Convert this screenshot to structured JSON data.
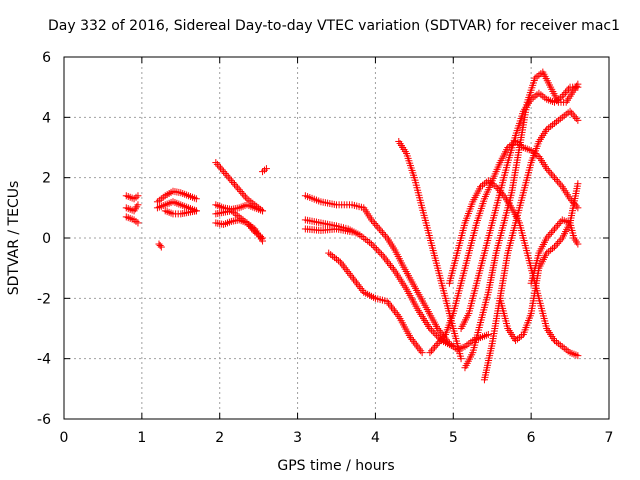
{
  "chart_data": {
    "type": "scatter",
    "title": "Day 332 of 2016, Sidereal Day-to-day VTEC variation (SDTVAR) for receiver mac1",
    "xlabel": "GPS time / hours",
    "ylabel": "SDTVAR / TECUs",
    "xlim": [
      0,
      7
    ],
    "ylim": [
      -6,
      6
    ],
    "xticks": [
      "0",
      "1",
      "2",
      "3",
      "4",
      "5",
      "6",
      "7"
    ],
    "yticks": [
      "-6",
      "-4",
      "-2",
      "0",
      "2",
      "4",
      "6"
    ],
    "grid": true,
    "marker": "+",
    "color": "#ff0000",
    "segments": [
      {
        "x": [
          0.8,
          0.9,
          0.95
        ],
        "y": [
          1.4,
          1.3,
          1.4
        ]
      },
      {
        "x": [
          0.8,
          0.9,
          0.95
        ],
        "y": [
          1.0,
          0.9,
          1.1
        ]
      },
      {
        "x": [
          0.8,
          0.9,
          0.95
        ],
        "y": [
          0.7,
          0.6,
          0.5
        ]
      },
      {
        "x": [
          1.22,
          1.25
        ],
        "y": [
          -0.2,
          -0.3
        ]
      },
      {
        "x": [
          1.2,
          1.3,
          1.4,
          1.5,
          1.6,
          1.7
        ],
        "y": [
          1.2,
          1.4,
          1.55,
          1.5,
          1.4,
          1.3
        ]
      },
      {
        "x": [
          1.2,
          1.3,
          1.4,
          1.5,
          1.6,
          1.7
        ],
        "y": [
          1.0,
          1.1,
          1.2,
          1.1,
          1.0,
          0.9
        ]
      },
      {
        "x": [
          1.3,
          1.4,
          1.5,
          1.6,
          1.7
        ],
        "y": [
          0.9,
          0.8,
          0.8,
          0.85,
          0.9
        ]
      },
      {
        "x": [
          1.95,
          2.05,
          2.15,
          2.25,
          2.35,
          2.45,
          2.55
        ],
        "y": [
          2.5,
          2.2,
          1.9,
          1.6,
          1.3,
          1.1,
          0.9
        ]
      },
      {
        "x": [
          1.95,
          2.05,
          2.15,
          2.25,
          2.35,
          2.45,
          2.55
        ],
        "y": [
          1.1,
          1.0,
          0.95,
          1.0,
          1.1,
          1.0,
          0.9
        ]
      },
      {
        "x": [
          1.95,
          2.05,
          2.15,
          2.25,
          2.35,
          2.45,
          2.55
        ],
        "y": [
          0.8,
          0.85,
          0.9,
          0.7,
          0.5,
          0.2,
          0.0
        ]
      },
      {
        "x": [
          1.95,
          2.05,
          2.15,
          2.25,
          2.35,
          2.45,
          2.55
        ],
        "y": [
          0.5,
          0.45,
          0.55,
          0.6,
          0.5,
          0.3,
          -0.1
        ]
      },
      {
        "x": [
          2.55,
          2.6
        ],
        "y": [
          2.2,
          2.3
        ]
      },
      {
        "x": [
          3.1,
          3.3,
          3.5,
          3.7,
          3.85,
          3.95,
          4.05,
          4.15,
          4.25,
          4.35,
          4.5,
          4.65,
          4.8,
          4.95,
          5.05,
          5.15,
          5.25,
          5.35,
          5.45
        ],
        "y": [
          1.4,
          1.2,
          1.1,
          1.1,
          1.0,
          0.6,
          0.3,
          0.0,
          -0.4,
          -0.9,
          -1.6,
          -2.3,
          -3.0,
          -3.5,
          -3.7,
          -3.6,
          -3.4,
          -3.3,
          -3.2
        ]
      },
      {
        "x": [
          3.1,
          3.3,
          3.5,
          3.65,
          3.8,
          3.95,
          4.1,
          4.25,
          4.4,
          4.55,
          4.7,
          4.85,
          5.0
        ],
        "y": [
          0.6,
          0.5,
          0.4,
          0.3,
          0.1,
          -0.2,
          -0.6,
          -1.1,
          -1.7,
          -2.4,
          -3.0,
          -3.4,
          -3.6
        ]
      },
      {
        "x": [
          3.1,
          3.3,
          3.5,
          3.7
        ],
        "y": [
          0.3,
          0.25,
          0.3,
          0.2
        ]
      },
      {
        "x": [
          3.4,
          3.55,
          3.7,
          3.85,
          4.0,
          4.15,
          4.3,
          4.45,
          4.6
        ],
        "y": [
          -0.5,
          -0.8,
          -1.3,
          -1.8,
          -2.0,
          -2.1,
          -2.6,
          -3.3,
          -3.8
        ]
      },
      {
        "x": [
          4.3,
          4.4,
          4.5,
          4.6,
          4.7,
          4.8,
          4.9,
          5.0,
          5.1
        ],
        "y": [
          3.2,
          2.8,
          2.0,
          1.0,
          0.0,
          -1.0,
          -2.0,
          -3.0,
          -4.0
        ]
      },
      {
        "x": [
          4.7,
          4.8,
          4.9,
          5.0,
          5.1,
          5.2,
          5.3,
          5.4,
          5.5,
          5.6,
          5.7,
          5.8,
          5.9,
          6.0,
          6.1,
          6.2,
          6.3,
          6.4,
          6.5,
          6.6
        ],
        "y": [
          -3.8,
          -3.5,
          -3.2,
          -2.5,
          -1.5,
          -0.5,
          0.5,
          1.3,
          1.9,
          2.5,
          3.0,
          3.2,
          3.0,
          2.9,
          2.7,
          2.3,
          2.0,
          1.7,
          1.3,
          1.0
        ]
      },
      {
        "x": [
          4.95,
          5.05,
          5.15,
          5.25,
          5.35,
          5.45,
          5.55,
          5.65,
          5.75,
          5.85,
          5.9,
          6.0,
          6.1,
          6.2,
          6.3,
          6.4,
          6.5,
          6.6
        ],
        "y": [
          -1.5,
          -0.5,
          0.5,
          1.2,
          1.7,
          1.9,
          1.7,
          1.4,
          1.0,
          0.5,
          0.0,
          -1.0,
          -2.0,
          -3.0,
          -3.4,
          -3.6,
          -3.8,
          -3.9
        ]
      },
      {
        "x": [
          5.1,
          5.2,
          5.3,
          5.4,
          5.5,
          5.6,
          5.7,
          5.8,
          5.9,
          6.0,
          6.1,
          6.2,
          6.3,
          6.4,
          6.5,
          6.6
        ],
        "y": [
          -3.0,
          -2.5,
          -1.5,
          -0.5,
          0.5,
          1.5,
          2.5,
          3.4,
          4.2,
          4.6,
          4.8,
          4.6,
          4.5,
          4.7,
          5.0,
          5.0
        ]
      },
      {
        "x": [
          5.15,
          5.25,
          5.35,
          5.45,
          5.55,
          5.65,
          5.75,
          5.85,
          5.95,
          6.05,
          6.15,
          6.25,
          6.35,
          6.45,
          6.55,
          6.6
        ],
        "y": [
          -4.3,
          -3.8,
          -2.8,
          -1.8,
          -0.5,
          0.5,
          1.5,
          3.0,
          4.5,
          5.3,
          5.5,
          5.0,
          4.5,
          4.5,
          4.9,
          5.1
        ]
      },
      {
        "x": [
          5.4,
          5.5,
          5.6,
          5.7,
          5.8,
          5.9,
          6.0,
          6.1,
          6.2,
          6.3,
          6.4,
          6.5,
          6.6
        ],
        "y": [
          -4.7,
          -3.5,
          -2.0,
          -0.5,
          0.5,
          1.5,
          2.5,
          3.2,
          3.6,
          3.8,
          4.0,
          4.2,
          3.9
        ]
      },
      {
        "x": [
          5.6,
          5.7,
          5.8,
          5.9,
          6.0,
          6.1,
          6.2,
          6.3,
          6.4,
          6.5,
          6.6
        ],
        "y": [
          -2.0,
          -3.0,
          -3.4,
          -3.2,
          -2.5,
          -1.0,
          -0.5,
          -0.3,
          0.0,
          0.5,
          1.8
        ]
      },
      {
        "x": [
          6.0,
          6.1,
          6.2,
          6.3,
          6.4,
          6.5,
          6.55,
          6.6
        ],
        "y": [
          -1.5,
          -0.5,
          0.0,
          0.3,
          0.6,
          0.5,
          0.0,
          -0.2
        ]
      }
    ]
  }
}
